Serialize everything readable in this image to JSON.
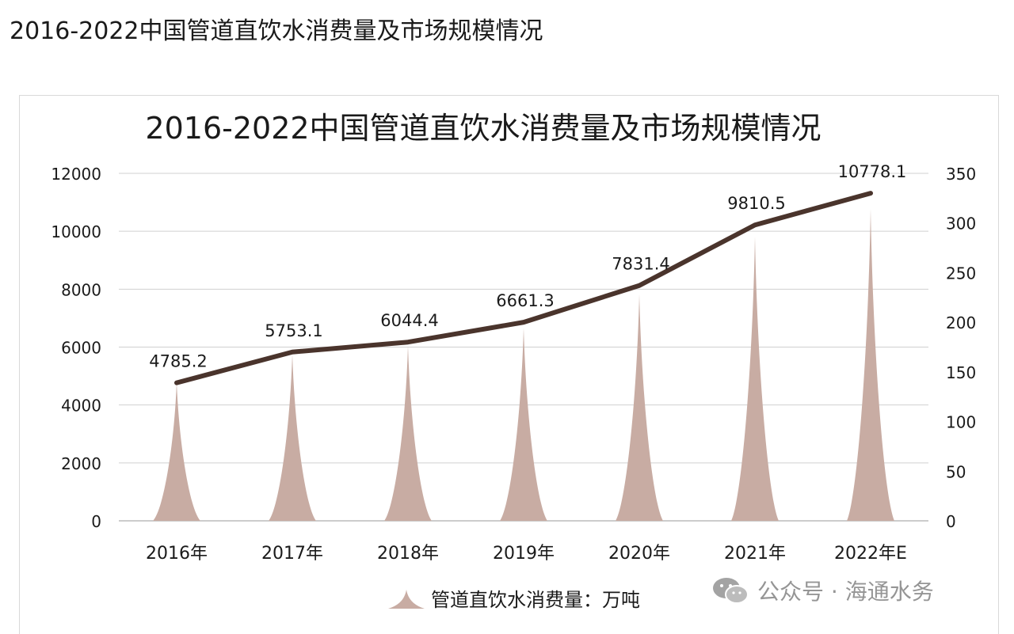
{
  "page_title": "2016-2022中国管道直饮水消费量及市场规模情况",
  "watermark": {
    "text": "公众号 · 海通水务",
    "icon": "wechat-icon"
  },
  "colors": {
    "peak_fill": "#c8aca3",
    "line": "#4a342c",
    "grid": "#d0d0d0",
    "text": "#1a1a1a"
  },
  "chart_data": {
    "type": "bar",
    "title": "2016-2022中国管道直饮水消费量及市场规模情况",
    "categories": [
      "2016年",
      "2017年",
      "2018年",
      "2019年",
      "2020年",
      "2021年",
      "2022年E"
    ],
    "series": [
      {
        "name": "管道直饮水消费量：万吨",
        "type": "bar",
        "axis": "left",
        "values": [
          4785.2,
          5753.1,
          6044.4,
          6661.3,
          7831.4,
          9810.5,
          10778.1
        ]
      },
      {
        "type": "line",
        "axis": "right",
        "values": [
          139,
          170,
          180,
          200,
          237,
          298,
          330
        ]
      }
    ],
    "data_labels": [
      "4785.2",
      "5753.1",
      "6044.4",
      "6661.3",
      "7831.4",
      "9810.5",
      "10778.1"
    ],
    "y_left": {
      "min": 0,
      "max": 12000,
      "ticks": [
        "0",
        "2000",
        "4000",
        "6000",
        "8000",
        "10000",
        "12000"
      ]
    },
    "y_right": {
      "min": 0,
      "max": 350,
      "ticks": [
        "0",
        "50",
        "100",
        "150",
        "200",
        "250",
        "300",
        "350"
      ]
    },
    "grid": true,
    "legend_position": "bottom"
  }
}
